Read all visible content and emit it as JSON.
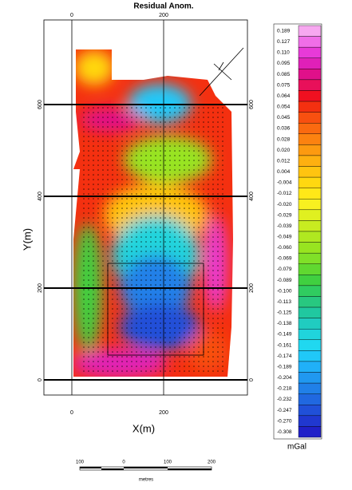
{
  "title": "Residual Anom.",
  "x_axis": {
    "label": "X(m)",
    "ticks": [
      "0",
      "200"
    ]
  },
  "y_axis": {
    "label": "Y(m)",
    "ticks": [
      "0",
      "200",
      "400",
      "600"
    ]
  },
  "colorbar": {
    "unit": "mGal",
    "labels": [
      "0.189",
      "0.127",
      "0.110",
      "0.095",
      "0.085",
      "0.075",
      "0.064",
      "0.054",
      "0.045",
      "0.036",
      "0.028",
      "0.020",
      "0.012",
      "0.004",
      "-0.004",
      "-0.012",
      "-0.020",
      "-0.029",
      "-0.039",
      "-0.049",
      "-0.060",
      "-0.069",
      "-0.079",
      "-0.089",
      "-0.100",
      "-0.113",
      "-0.125",
      "-0.138",
      "-0.149",
      "-0.161",
      "-0.174",
      "-0.189",
      "-0.204",
      "-0.218",
      "-0.232",
      "-0.247",
      "-0.270",
      "-0.308"
    ],
    "colors": [
      "#f7a8f0",
      "#f06ee8",
      "#e83ad8",
      "#e020b8",
      "#e0108a",
      "#e8105a",
      "#f01020",
      "#f43010",
      "#f85010",
      "#fa6a10",
      "#fc8210",
      "#fd9a10",
      "#feb010",
      "#ffc410",
      "#ffd810",
      "#ffe818",
      "#f8f020",
      "#e0f020",
      "#c8ec20",
      "#b0e820",
      "#98e420",
      "#80e028",
      "#60d830",
      "#40d040",
      "#30cc60",
      "#28c880",
      "#20c8a0",
      "#20ccc0",
      "#20d4dc",
      "#20d8f0",
      "#20c8f8",
      "#20b0f8",
      "#2098f0",
      "#2080e8",
      "#2068e0",
      "#2050d8",
      "#2038d0",
      "#2020c8"
    ]
  },
  "scale_bar": {
    "labels": [
      "100",
      "0",
      "100",
      "200"
    ],
    "unit": "metres"
  }
}
